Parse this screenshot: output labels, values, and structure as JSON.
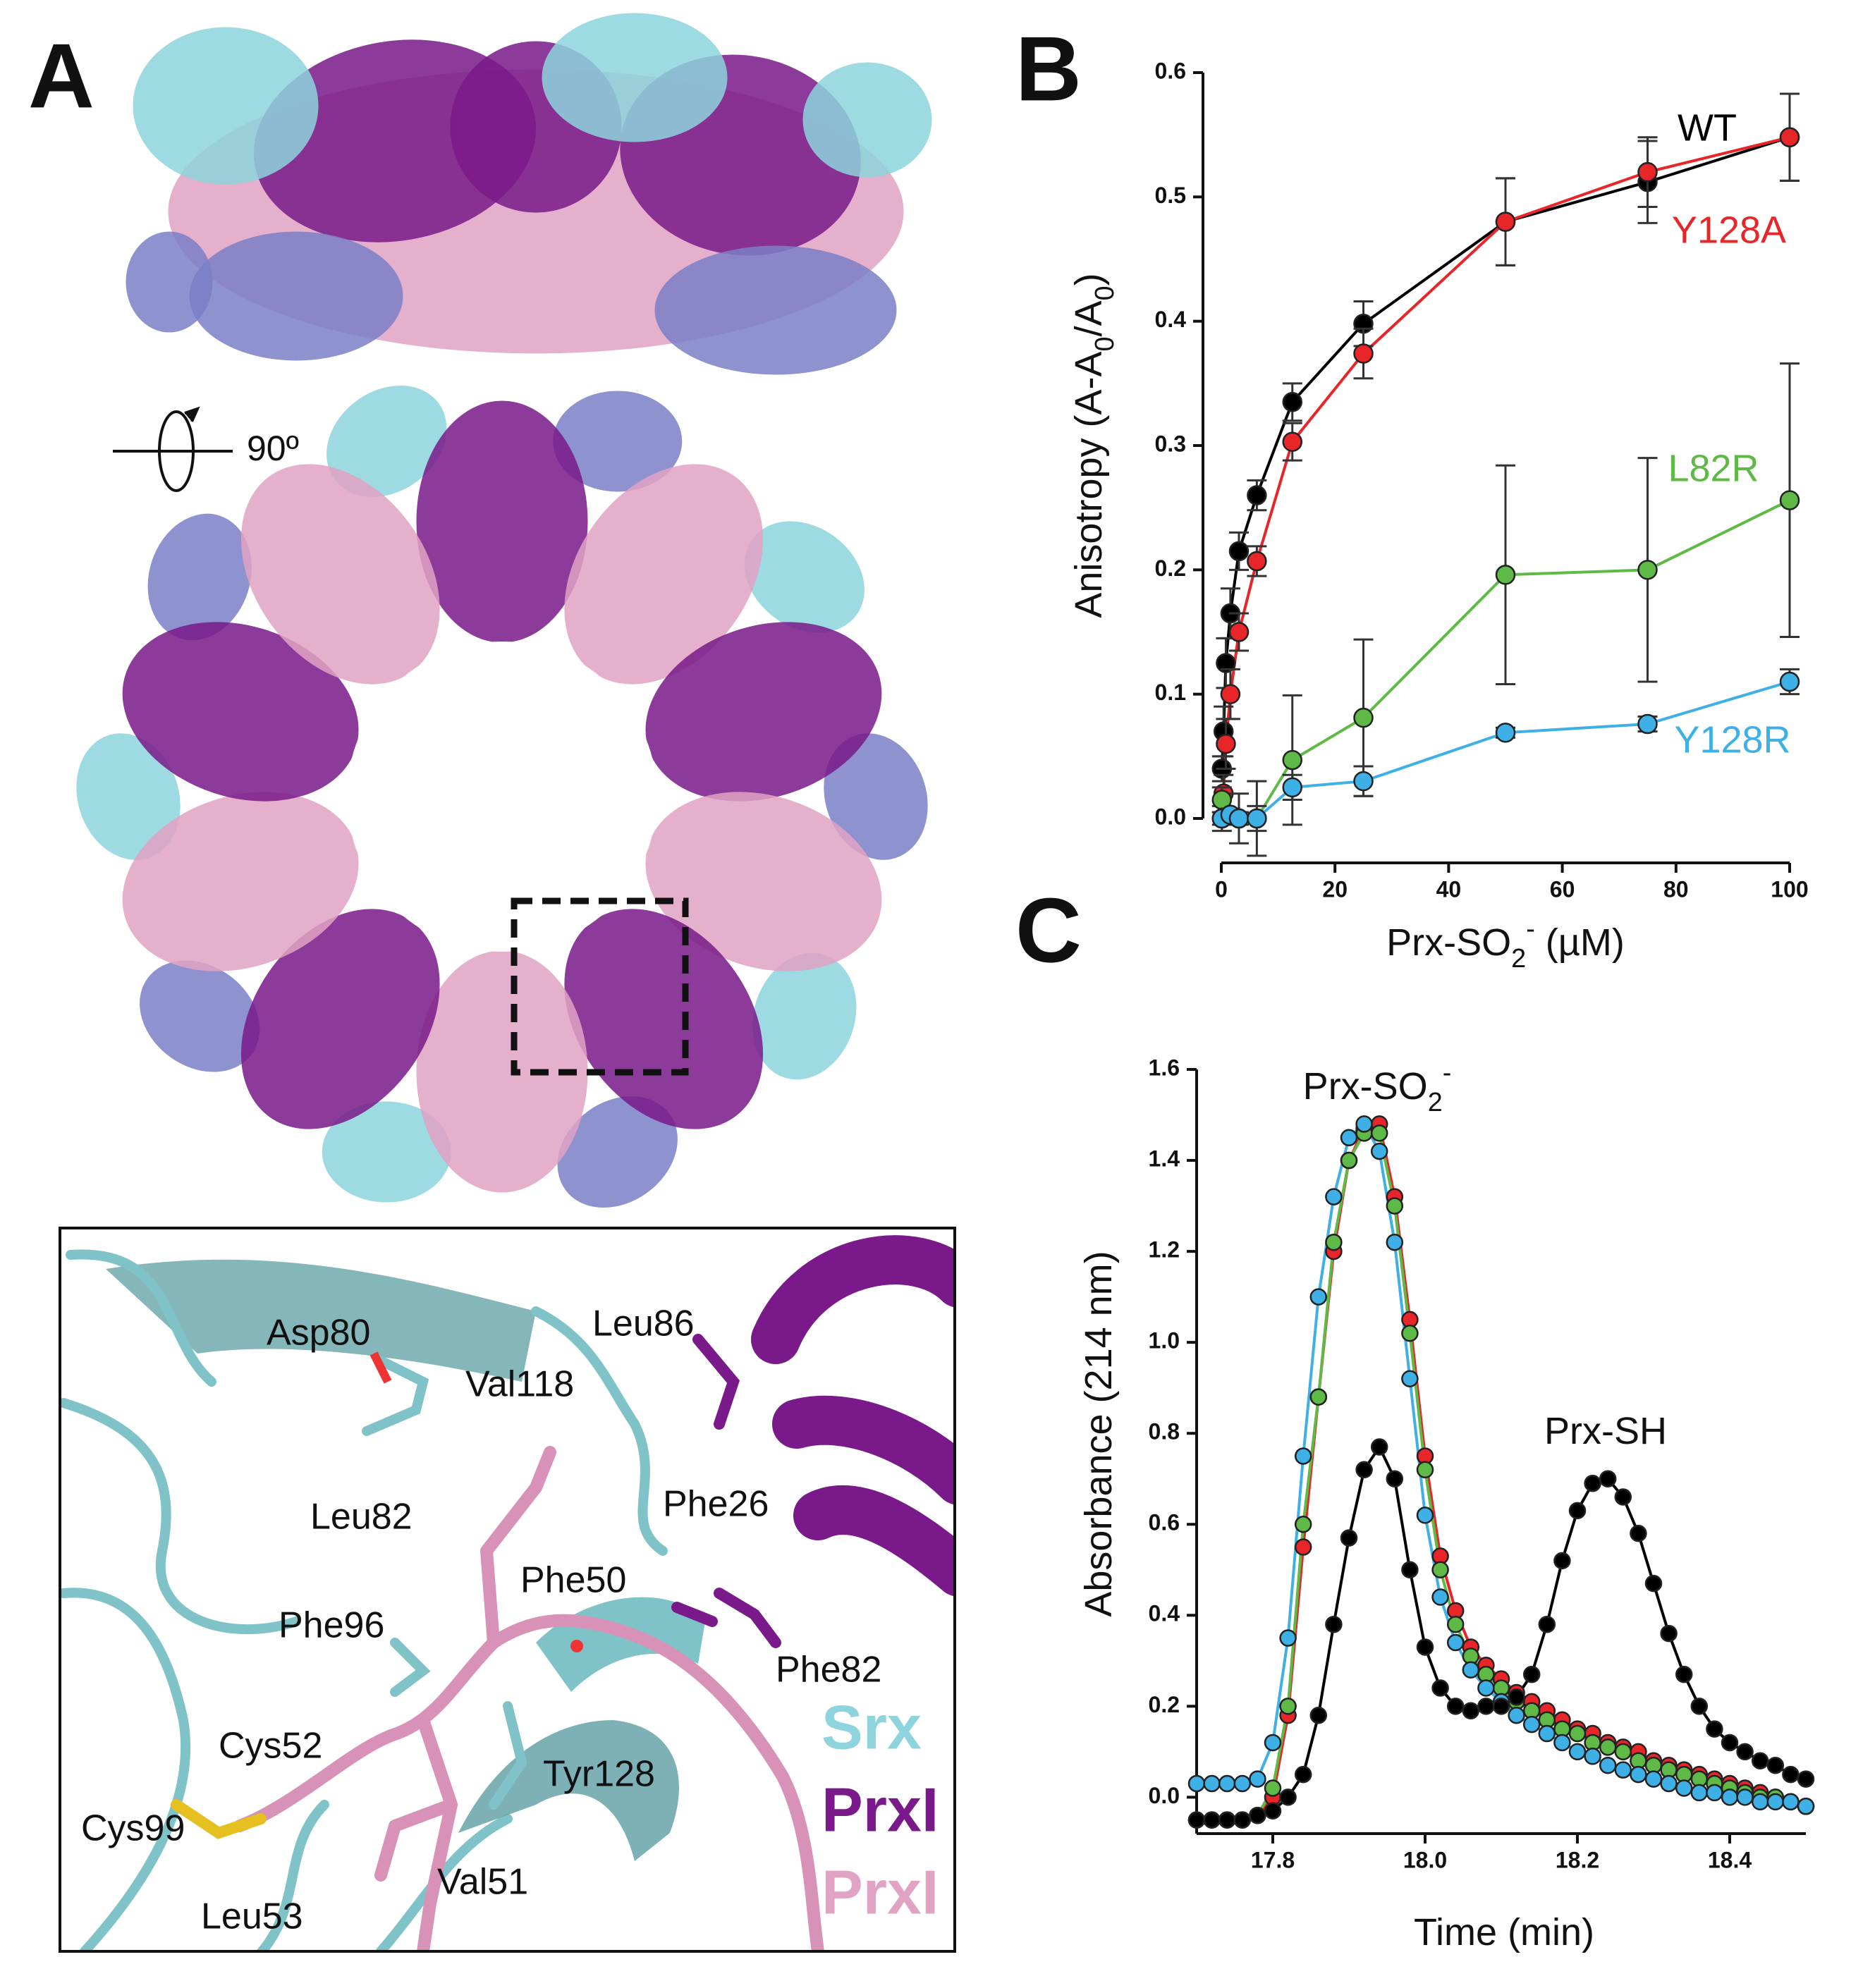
{
  "panels": {
    "A": "A",
    "B": "B",
    "C": "C"
  },
  "structure": {
    "rotation": "90º"
  },
  "inset": {
    "labels": [
      "Asp80",
      "Leu86",
      "Val118",
      "Leu82",
      "Phe26",
      "Phe50",
      "Phe96",
      "Phe82",
      "Cys52",
      "Tyr128",
      "Cys99",
      "Val51",
      "Leu53"
    ],
    "legend": [
      {
        "text": "Srx",
        "color": "#8ed4dc"
      },
      {
        "text": "PrxI",
        "color": "#7a1a8a"
      },
      {
        "text": "PrxI",
        "color": "#e1a3c4"
      }
    ]
  },
  "chart_data": [
    {
      "type": "line",
      "ylabel": [
        {
          "text": "Anisotropy (A-A"
        },
        {
          "text": "0",
          "shift": "sub"
        },
        {
          "text": "/A"
        },
        {
          "text": "0",
          "shift": "sub"
        },
        {
          "text": ")"
        }
      ],
      "xlabel": [
        {
          "text": "Prx-SO"
        },
        {
          "text": "2",
          "shift": "sub"
        },
        {
          "text": "-",
          "shift": "super"
        },
        {
          "text": " (µM)"
        }
      ],
      "xlim": [
        0,
        100
      ],
      "xticks": [
        0,
        20,
        40,
        60,
        80,
        100
      ],
      "ylim": [
        0,
        0.6
      ],
      "yticks": [
        {
          "value": 0,
          "label": "0.0"
        },
        0.1,
        0.2,
        0.3,
        0.4,
        0.5,
        0.6
      ],
      "grid": false,
      "series": [
        {
          "name": "WT",
          "color": "#000000",
          "x": [
            0.1,
            0.4,
            0.8,
            1.6,
            3.1,
            6.25,
            12.5,
            25,
            50,
            75,
            100
          ],
          "values": [
            0.04,
            0.07,
            0.125,
            0.165,
            0.215,
            0.26,
            0.335,
            0.398,
            0.48,
            0.512,
            0.548
          ],
          "errors": [
            0.01,
            0.02,
            0.02,
            0.02,
            0.015,
            0.012,
            0.015,
            0.018,
            0.035,
            0.033,
            0.035
          ]
        },
        {
          "name": "Y128A",
          "color": "#e8262a",
          "x": [
            0.1,
            0.4,
            0.8,
            1.6,
            3.1,
            6.25,
            12.5,
            25,
            50,
            75,
            100
          ],
          "values": [
            0.0,
            0.02,
            0.06,
            0.1,
            0.15,
            0.207,
            0.303,
            0.374,
            0.48,
            0.52,
            0.548
          ],
          "errors": [
            0.01,
            0.015,
            0.02,
            0.02,
            0.015,
            0.012,
            0.015,
            0.02,
            0.035,
            0.028,
            0.035
          ]
        },
        {
          "name": "L82R",
          "color": "#5fb946",
          "x": [
            0.1,
            3.1,
            6.25,
            12.5,
            25,
            50,
            75,
            100
          ],
          "values": [
            0.015,
            0.0,
            0.0,
            0.047,
            0.081,
            0.196,
            0.2,
            0.256
          ],
          "errors": [
            0.01,
            0.02,
            0.03,
            0.052,
            0.063,
            0.088,
            0.09,
            0.11
          ]
        },
        {
          "name": "Y128R",
          "color": "#3fb0e6",
          "x": [
            0.1,
            1.6,
            3.1,
            6.25,
            12.5,
            25,
            50,
            75,
            100
          ],
          "values": [
            0.0,
            0.003,
            0.0,
            0.0,
            0.025,
            0.03,
            0.069,
            0.076,
            0.11
          ],
          "errors": [
            0.005,
            0.005,
            0.005,
            0.01,
            0.01,
            0.012,
            0.004,
            0.006,
            0.01
          ]
        }
      ]
    },
    {
      "type": "line",
      "ylabel": [
        {
          "text": "Absorbance (214 nm)"
        }
      ],
      "xlabel": [
        {
          "text": "Time (min)"
        }
      ],
      "xlim": [
        17.7,
        18.5
      ],
      "xticks": [
        17.8,
        {
          "value": 18,
          "label": "18.0"
        },
        18.2,
        18.4
      ],
      "ylim": [
        -0.08,
        1.6
      ],
      "yticks": [
        {
          "value": 0,
          "label": "0.0"
        },
        0.2,
        0.4,
        0.6,
        0.8,
        {
          "value": 1,
          "label": "1.0"
        },
        1.2,
        1.4,
        1.6
      ],
      "grid": false,
      "annotations": [
        {
          "parts": [
            {
              "text": "Prx-SO"
            },
            {
              "text": "2",
              "shift": "sub"
            },
            {
              "text": "-",
              "shift": "super"
            }
          ]
        },
        {
          "parts": [
            {
              "text": "Prx-SH"
            }
          ]
        }
      ],
      "x": [
        17.7,
        17.72,
        17.74,
        17.76,
        17.78,
        17.8,
        17.82,
        17.84,
        17.86,
        17.88,
        17.9,
        17.92,
        17.94,
        17.96,
        17.98,
        18,
        18.02,
        18.04,
        18.06,
        18.08,
        18.1,
        18.12,
        18.14,
        18.16,
        18.18,
        18.2,
        18.22,
        18.24,
        18.26,
        18.28,
        18.3,
        18.32,
        18.34,
        18.36,
        18.38,
        18.4,
        18.42,
        18.44,
        18.46,
        18.48,
        18.5
      ],
      "series": [
        {
          "color": "#e8262a",
          "values": [
            -0.05,
            -0.05,
            -0.05,
            -0.05,
            -0.04,
            0.0,
            0.18,
            0.55,
            0.88,
            1.2,
            1.4,
            1.47,
            1.48,
            1.32,
            1.05,
            0.75,
            0.53,
            0.41,
            0.33,
            0.29,
            0.26,
            0.23,
            0.21,
            0.19,
            0.17,
            0.15,
            0.14,
            0.12,
            0.11,
            0.1,
            0.08,
            0.07,
            0.06,
            0.05,
            0.04,
            0.03,
            0.02,
            0.01,
            0,
            -0.01,
            -0.02
          ]
        },
        {
          "color": "#5fb946",
          "values": [
            -0.05,
            -0.05,
            -0.05,
            -0.05,
            -0.04,
            0.02,
            0.2,
            0.6,
            0.88,
            1.22,
            1.4,
            1.46,
            1.46,
            1.3,
            1.02,
            0.72,
            0.5,
            0.38,
            0.31,
            0.27,
            0.24,
            0.21,
            0.19,
            0.17,
            0.15,
            0.14,
            0.12,
            0.11,
            0.1,
            0.08,
            0.07,
            0.06,
            0.05,
            0.04,
            0.03,
            0.02,
            0.01,
            0,
            0,
            -0.01,
            -0.02
          ]
        },
        {
          "color": "#3fb0e6",
          "values": [
            0.03,
            0.03,
            0.03,
            0.03,
            0.04,
            0.12,
            0.35,
            0.75,
            1.1,
            1.32,
            1.45,
            1.48,
            1.42,
            1.22,
            0.92,
            0.62,
            0.44,
            0.34,
            0.28,
            0.24,
            0.21,
            0.18,
            0.16,
            0.14,
            0.12,
            0.1,
            0.09,
            0.07,
            0.06,
            0.05,
            0.04,
            0.03,
            0.02,
            0.01,
            0.01,
            0,
            0,
            -0.01,
            -0.01,
            -0.01,
            -0.02
          ]
        },
        {
          "color": "#000000",
          "values": [
            -0.05,
            -0.05,
            -0.05,
            -0.05,
            -0.04,
            -0.03,
            0.0,
            0.05,
            0.18,
            0.38,
            0.57,
            0.72,
            0.77,
            0.7,
            0.5,
            0.33,
            0.24,
            0.2,
            0.19,
            0.2,
            0.2,
            0.22,
            0.27,
            0.38,
            0.52,
            0.63,
            0.69,
            0.7,
            0.66,
            0.58,
            0.47,
            0.36,
            0.27,
            0.2,
            0.15,
            0.12,
            0.1,
            0.08,
            0.07,
            0.05,
            0.04
          ]
        }
      ]
    }
  ]
}
